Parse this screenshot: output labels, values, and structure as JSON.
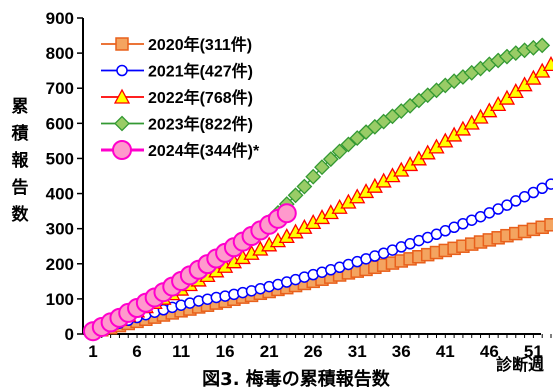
{
  "chart_data": {
    "type": "line",
    "title": "図3. 梅毒の累積報告数",
    "ylabel": "累積報告数",
    "xlabel": "診断週",
    "xlim": [
      1,
      53
    ],
    "ylim": [
      0,
      900
    ],
    "x_ticks": [
      1,
      6,
      11,
      16,
      21,
      26,
      31,
      36,
      41,
      46,
      51
    ],
    "y_ticks": [
      0,
      100,
      200,
      300,
      400,
      500,
      600,
      700,
      800,
      900
    ],
    "grid": false,
    "legend_position": "top-left",
    "series": [
      {
        "name": "2020年(311件)",
        "color": "#e8601c",
        "fill": "#f4a460",
        "marker": "square",
        "start_week": 1,
        "values": [
          6,
          12,
          18,
          24,
          30,
          36,
          42,
          48,
          54,
          60,
          66,
          71,
          77,
          82,
          88,
          93,
          99,
          105,
          110,
          116,
          121,
          127,
          132,
          138,
          144,
          150,
          156,
          162,
          168,
          174,
          179,
          184,
          190,
          196,
          202,
          208,
          214,
          220,
          226,
          232,
          238,
          244,
          250,
          256,
          262,
          268,
          274,
          280,
          286,
          292,
          298,
          304,
          311
        ]
      },
      {
        "name": "2021年(427件)",
        "color": "#0000ff",
        "fill": "#ffffff",
        "marker": "circle",
        "start_week": 1,
        "values": [
          8,
          15,
          23,
          31,
          39,
          47,
          55,
          62,
          69,
          76,
          82,
          88,
          94,
          99,
          104,
          108,
          113,
          118,
          123,
          129,
          135,
          141,
          148,
          155,
          162,
          169,
          176,
          183,
          190,
          198,
          206,
          214,
          222,
          230,
          239,
          248,
          257,
          266,
          275,
          284,
          294,
          304,
          314,
          324,
          334,
          345,
          356,
          367,
          379,
          391,
          403,
          415,
          427
        ]
      },
      {
        "name": "2022年(768件)",
        "color": "#ff0000",
        "fill": "#ffff00",
        "marker": "triangle",
        "start_week": 1,
        "values": [
          10,
          20,
          31,
          42,
          54,
          66,
          78,
          90,
          102,
          115,
          128,
          141,
          154,
          167,
          180,
          193,
          206,
          218,
          230,
          242,
          254,
          266,
          278,
          291,
          304,
          318,
          332,
          346,
          361,
          376,
          391,
          406,
          421,
          436,
          451,
          467,
          483,
          499,
          516,
          533,
          550,
          567,
          584,
          601,
          618,
          636,
          654,
          672,
          691,
          710,
          729,
          749,
          768
        ]
      },
      {
        "name": "2023年(822件)",
        "color": "#339933",
        "fill": "#99cc66",
        "marker": "diamond",
        "start_week": 1,
        "values": [
          12,
          25,
          38,
          52,
          66,
          80,
          95,
          110,
          125,
          140,
          156,
          172,
          188,
          204,
          220,
          236,
          252,
          268,
          284,
          300,
          320,
          345,
          370,
          395,
          420,
          448,
          475,
          498,
          520,
          540,
          558,
          575,
          590,
          605,
          620,
          635,
          650,
          665,
          680,
          694,
          708,
          720,
          732,
          744,
          756,
          768,
          779,
          790,
          800,
          808,
          815,
          822
        ]
      },
      {
        "name": "2024年(344件)*",
        "color": "#ff00cc",
        "fill": "#ff99cc",
        "marker": "circle-large",
        "start_week": 1,
        "values": [
          8,
          20,
          33,
          46,
          60,
          74,
          89,
          104,
          119,
          135,
          151,
          167,
          183,
          199,
          215,
          231,
          247,
          263,
          279,
          295,
          311,
          328,
          344
        ]
      }
    ]
  }
}
